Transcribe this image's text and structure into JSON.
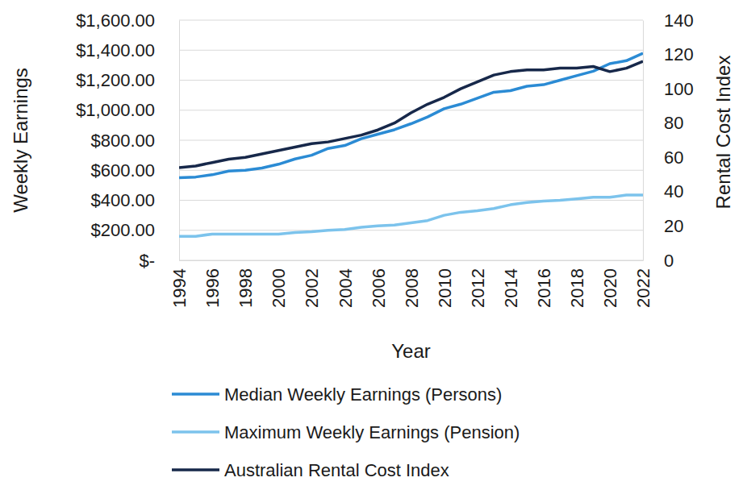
{
  "chart_data": {
    "type": "line",
    "x_label": "Year",
    "y_label": "Weekly Earnings",
    "y2_label": "Rental Cost Index",
    "x": [
      1994,
      1995,
      1996,
      1997,
      1998,
      1999,
      2000,
      2001,
      2002,
      2003,
      2004,
      2005,
      2006,
      2007,
      2008,
      2009,
      2010,
      2011,
      2012,
      2013,
      2014,
      2015,
      2016,
      2017,
      2018,
      2019,
      2020,
      2021,
      2022
    ],
    "xlim": [
      1994,
      2022
    ],
    "xticks": [
      1994,
      1996,
      1998,
      2000,
      2002,
      2004,
      2006,
      2008,
      2010,
      2012,
      2014,
      2016,
      2018,
      2020,
      2022
    ],
    "ylim": [
      0,
      1600
    ],
    "yticks": [
      {
        "value": 0,
        "label": "$-"
      },
      {
        "value": 200,
        "label": "$200.00"
      },
      {
        "value": 400,
        "label": "$400.00"
      },
      {
        "value": 600,
        "label": "$600.00"
      },
      {
        "value": 800,
        "label": "$800.00"
      },
      {
        "value": 1000,
        "label": "$1,000.00"
      },
      {
        "value": 1200,
        "label": "$1,200.00"
      },
      {
        "value": 1400,
        "label": "$1,400.00"
      },
      {
        "value": 1600,
        "label": "$1,600.00"
      }
    ],
    "y2lim": [
      0,
      140
    ],
    "y2ticks": [
      0,
      20,
      40,
      60,
      80,
      100,
      120,
      140
    ],
    "grid": true,
    "legend": "bottom",
    "series": [
      {
        "name": "Median Weekly Earnings (Persons)",
        "color": "#2b8bd4",
        "values": [
          550,
          555,
          570,
          595,
          600,
          615,
          640,
          675,
          700,
          745,
          765,
          810,
          840,
          870,
          910,
          955,
          1010,
          1040,
          1080,
          1120,
          1130,
          1160,
          1170,
          1200,
          1230,
          1260,
          1310,
          1330,
          1380
        ]
      },
      {
        "name": "Maximum Weekly Earnings (Pension)",
        "color": "#7cc3ec",
        "values": [
          160,
          160,
          175,
          175,
          175,
          175,
          175,
          185,
          190,
          200,
          205,
          220,
          230,
          235,
          250,
          265,
          300,
          320,
          330,
          345,
          370,
          385,
          395,
          400,
          410,
          420,
          420,
          435,
          435
        ]
      },
      {
        "name": "Australian Rental Cost Index",
        "color": "#17284a",
        "axis": "y2",
        "values": [
          54,
          55,
          57,
          59,
          60,
          62,
          64,
          66,
          68,
          69,
          71,
          73,
          76,
          80,
          86,
          91,
          95,
          100,
          104,
          108,
          110,
          111,
          111,
          112,
          112,
          113,
          110,
          112,
          116
        ]
      }
    ]
  }
}
